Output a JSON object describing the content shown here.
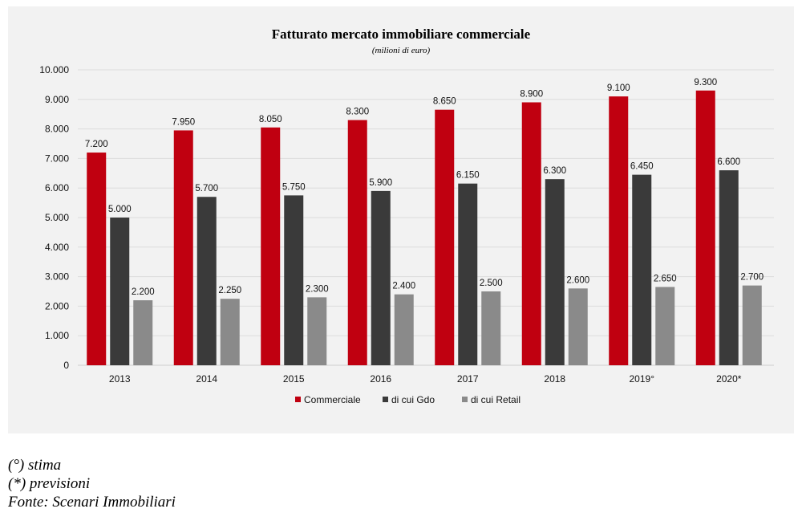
{
  "chart_data": {
    "type": "bar",
    "title": "Fatturato mercato immobiliare commerciale",
    "subtitle": "(milioni di euro)",
    "xlabel": "",
    "ylabel": "",
    "categories": [
      "2013",
      "2014",
      "2015",
      "2016",
      "2017",
      "2018",
      "2019°",
      "2020*"
    ],
    "ylim": [
      0,
      10000
    ],
    "yticks": [
      0,
      1000,
      2000,
      3000,
      4000,
      5000,
      6000,
      7000,
      8000,
      9000,
      10000
    ],
    "ytick_labels": [
      "0",
      "1.000",
      "2.000",
      "3.000",
      "4.000",
      "5.000",
      "6.000",
      "7.000",
      "8.000",
      "9.000",
      "10.000"
    ],
    "grid": true,
    "legend_position": "bottom",
    "series": [
      {
        "name": "Commerciale",
        "color": "#c00010",
        "values": [
          7200,
          7950,
          8050,
          8300,
          8650,
          8900,
          9100,
          9300
        ],
        "labels": [
          "7.200",
          "7.950",
          "8.050",
          "8.300",
          "8.650",
          "8.900",
          "9.100",
          "9.300"
        ]
      },
      {
        "name": "di cui Gdo",
        "color": "#3a3a3a",
        "values": [
          5000,
          5700,
          5750,
          5900,
          6150,
          6300,
          6450,
          6600
        ],
        "labels": [
          "5.000",
          "5.700",
          "5.750",
          "5.900",
          "6.150",
          "6.300",
          "6.450",
          "6.600"
        ]
      },
      {
        "name": "di cui Retail",
        "color": "#8a8a8a",
        "values": [
          2200,
          2250,
          2300,
          2400,
          2500,
          2600,
          2650,
          2700
        ],
        "labels": [
          "2.200",
          "2.250",
          "2.300",
          "2.400",
          "2.500",
          "2.600",
          "2.650",
          "2.700"
        ]
      }
    ]
  },
  "notes": [
    "(°) stima",
    "(*) previsioni",
    "Fonte: Scenari Immobiliari"
  ]
}
